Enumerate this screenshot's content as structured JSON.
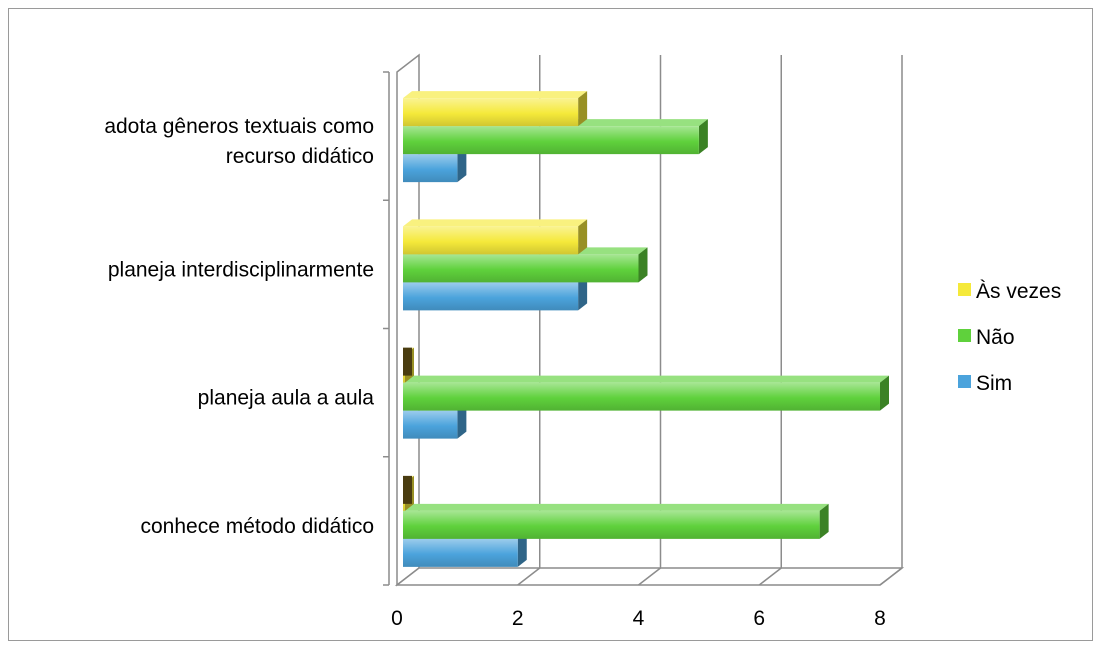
{
  "chart_data": {
    "type": "bar",
    "orientation": "horizontal",
    "style": "3d",
    "categories": [
      "conhece método didático",
      "planeja aula a aula",
      "planeja interdisciplinarmente",
      "adota gêneros textuais como recurso didático"
    ],
    "category_label_lines": [
      [
        "conhece método didático"
      ],
      [
        "planeja aula a aula"
      ],
      [
        "planeja interdisciplinarmente"
      ],
      [
        "adota gêneros textuais como",
        "recurso didático"
      ]
    ],
    "series": [
      {
        "name": "Sim",
        "values": [
          2,
          1,
          3,
          1
        ],
        "color": "#4ba3dc"
      },
      {
        "name": "Não",
        "values": [
          7,
          8,
          4,
          5
        ],
        "color": "#5fd13c"
      },
      {
        "name": "Às vezes",
        "values": [
          0,
          0,
          3,
          3
        ],
        "color": "#f5e93a"
      }
    ],
    "xlim": [
      0,
      8
    ],
    "x_ticks": [
      "0",
      "2",
      "4",
      "6",
      "8"
    ],
    "grid": true,
    "legend_position": "right",
    "legend_order": [
      "Às vezes",
      "Não",
      "Sim"
    ],
    "title": "",
    "xlabel": "",
    "ylabel": ""
  }
}
